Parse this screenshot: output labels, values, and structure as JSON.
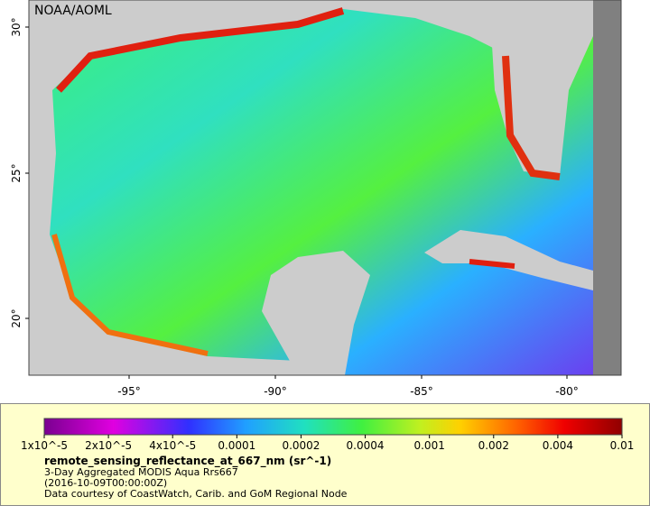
{
  "map": {
    "credit": "NOAA/AOML",
    "lat_ticks": [
      "30°",
      "25°",
      "20°"
    ],
    "lon_ticks": [
      "-95°",
      "-90°",
      "-85°",
      "-80°"
    ]
  },
  "legend": {
    "colorbar_ticks": [
      "1x10^-5",
      "2x10^-5",
      "4x10^-5",
      "0.0001",
      "0.0002",
      "0.0004",
      "0.001",
      "0.002",
      "0.004",
      "0.01"
    ],
    "variable": "remote_sensing_reflectance_at_667_nm (sr^-1)",
    "description": "3-Day Aggregated MODIS Aqua Rrs667",
    "time": "(2016-10-09T00:00:00Z)",
    "source": "Data courtesy of CoastWatch, Carib. and GoM Regional Node"
  }
}
